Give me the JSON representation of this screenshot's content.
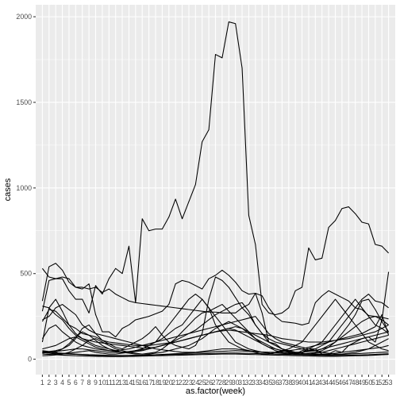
{
  "chart_data": {
    "type": "line",
    "title": "",
    "xlabel": "as.factor(week)",
    "ylabel": "cases",
    "categories": [
      "1",
      "2",
      "3",
      "4",
      "5",
      "6",
      "7",
      "8",
      "9",
      "10",
      "11",
      "12",
      "13",
      "14",
      "15",
      "16",
      "17",
      "18",
      "19",
      "20",
      "21",
      "22",
      "23",
      "24",
      "25",
      "26",
      "27",
      "28",
      "29",
      "30",
      "31",
      "32",
      "33",
      "34",
      "35",
      "36",
      "37",
      "38",
      "39",
      "40",
      "41",
      "42",
      "43",
      "44",
      "45",
      "46",
      "47",
      "48",
      "49",
      "50",
      "51",
      "52",
      "53"
    ],
    "ylim": [
      -90,
      2070
    ],
    "yticks": [
      0,
      500,
      1000,
      1500,
      2000
    ],
    "grid": true,
    "legend": "none",
    "series": [
      {
        "values": [
          340,
          540,
          560,
          520,
          450,
          420,
          420,
          410,
          420,
          390,
          410,
          380,
          360,
          340,
          330,
          325,
          320,
          315,
          310,
          305,
          300,
          295,
          290,
          285,
          280,
          275,
          275,
          270,
          270,
          270,
          300,
          320,
          385,
          370,
          300,
          250,
          220,
          215,
          210,
          200,
          210,
          330,
          370,
          400,
          380,
          360,
          340,
          300,
          290,
          255,
          250,
          245,
          235
        ]
      },
      {
        "values": [
          280,
          460,
          470,
          480,
          470,
          420,
          410,
          440,
          260,
          160,
          160,
          130,
          180,
          200,
          230,
          240,
          250,
          265,
          280,
          320,
          440,
          460,
          450,
          430,
          410,
          470,
          490,
          520,
          490,
          450,
          400,
          380,
          385,
          270,
          100,
          90,
          60,
          40,
          30,
          50,
          60,
          60,
          30,
          30,
          50,
          40,
          80,
          100,
          120,
          130,
          100,
          230,
          510
        ]
      },
      {
        "values": [
          530,
          480,
          470,
          470,
          400,
          350,
          350,
          270,
          430,
          380,
          470,
          530,
          500,
          660,
          330,
          820,
          750,
          760,
          760,
          830,
          935,
          820,
          920,
          1020,
          1270,
          1340,
          1780,
          1760,
          1970,
          1960,
          1700,
          840,
          670,
          320,
          270,
          260,
          270,
          300,
          400,
          420,
          650,
          580,
          590,
          770,
          810,
          880,
          890,
          850,
          800,
          790,
          670,
          660,
          620
        ]
      },
      {
        "values": [
          220,
          290,
          280,
          240,
          200,
          180,
          150,
          140,
          130,
          110,
          100,
          95,
          90,
          85,
          80,
          80,
          80,
          85,
          90,
          95,
          100,
          110,
          120,
          130,
          140,
          150,
          160,
          165,
          170,
          165,
          160,
          155,
          150,
          145,
          140,
          130,
          120,
          115,
          110,
          105,
          100,
          100,
          100,
          105,
          110,
          115,
          120,
          130,
          140,
          150,
          160,
          180,
          200
        ]
      },
      {
        "values": [
          50,
          45,
          40,
          60,
          80,
          120,
          180,
          200,
          150,
          110,
          90,
          70,
          60,
          80,
          100,
          120,
          150,
          190,
          140,
          100,
          80,
          70,
          60,
          80,
          150,
          350,
          480,
          460,
          420,
          360,
          300,
          260,
          200,
          150,
          100,
          80,
          60,
          50,
          40,
          40,
          60,
          80,
          100,
          150,
          200,
          250,
          300,
          350,
          300,
          250,
          200,
          180,
          150
        ]
      },
      {
        "values": [
          100,
          300,
          350,
          280,
          200,
          150,
          120,
          100,
          80,
          70,
          60,
          50,
          40,
          40,
          50,
          60,
          80,
          100,
          150,
          200,
          250,
          300,
          350,
          380,
          350,
          300,
          200,
          150,
          100,
          80,
          60,
          50,
          40,
          30,
          30,
          40,
          50,
          60,
          80,
          100,
          150,
          200,
          250,
          300,
          350,
          300,
          250,
          200,
          150,
          100,
          80,
          60,
          50
        ]
      },
      {
        "values": [
          40,
          35,
          30,
          30,
          35,
          40,
          45,
          50,
          40,
          35,
          30,
          30,
          35,
          40,
          50,
          60,
          80,
          100,
          120,
          150,
          180,
          200,
          250,
          300,
          350,
          300,
          250,
          200,
          150,
          100,
          80,
          60,
          50,
          40,
          35,
          30,
          30,
          30,
          35,
          40,
          50,
          60,
          80,
          100,
          150,
          200,
          250,
          300,
          350,
          380,
          340,
          330,
          300
        ]
      },
      {
        "values": [
          230,
          250,
          300,
          320,
          290,
          260,
          200,
          170,
          150,
          140,
          130,
          120,
          110,
          100,
          90,
          80,
          70,
          60,
          55,
          50,
          45,
          40,
          40,
          40,
          45,
          50,
          55,
          60,
          60,
          60,
          55,
          50,
          45,
          40,
          40,
          40,
          45,
          50,
          55,
          60,
          70,
          80,
          90,
          100,
          110,
          120,
          130,
          140,
          150,
          170,
          190,
          260,
          140
        ]
      },
      {
        "values": [
          40,
          45,
          50,
          60,
          90,
          130,
          160,
          140,
          110,
          80,
          60,
          50,
          40,
          35,
          30,
          30,
          35,
          40,
          60,
          90,
          120,
          160,
          200,
          240,
          270,
          280,
          300,
          320,
          280,
          240,
          200,
          160,
          120,
          90,
          70,
          50,
          40,
          35,
          30,
          30,
          35,
          40,
          50,
          70,
          100,
          150,
          200,
          260,
          340,
          350,
          290,
          220,
          160
        ]
      },
      {
        "values": [
          310,
          300,
          260,
          230,
          180,
          140,
          120,
          110,
          100,
          95,
          90,
          85,
          80,
          75,
          70,
          65,
          65,
          70,
          80,
          90,
          110,
          130,
          150,
          170,
          200,
          230,
          260,
          280,
          300,
          320,
          330,
          280,
          200,
          150,
          120,
          100,
          90,
          80,
          70,
          60,
          50,
          50,
          60,
          80,
          100,
          130,
          160,
          190,
          220,
          240,
          250,
          230,
          200
        ]
      },
      {
        "values": [
          120,
          180,
          200,
          160,
          130,
          100,
          80,
          70,
          60,
          55,
          50,
          50,
          55,
          60,
          70,
          80,
          90,
          100,
          110,
          120,
          130,
          140,
          150,
          160,
          170,
          180,
          190,
          200,
          210,
          220,
          230,
          240,
          250,
          200,
          150,
          120,
          100,
          90,
          80,
          70,
          60,
          50,
          40,
          35,
          30,
          30,
          35,
          40,
          50,
          60,
          80,
          100,
          120
        ]
      },
      {
        "values": [
          60,
          70,
          80,
          100,
          120,
          130,
          110,
          90,
          70,
          60,
          50,
          45,
          40,
          40,
          45,
          50,
          60,
          70,
          80,
          90,
          100,
          110,
          120,
          130,
          140,
          150,
          160,
          170,
          180,
          170,
          150,
          130,
          110,
          90,
          70,
          60,
          50,
          45,
          40,
          40,
          45,
          50,
          60,
          70,
          80,
          90,
          100,
          110,
          120,
          130,
          140,
          150,
          160
        ]
      },
      {
        "values": [
          35,
          40,
          45,
          50,
          55,
          60,
          60,
          55,
          50,
          45,
          40,
          40,
          40,
          45,
          50,
          55,
          60,
          70,
          80,
          90,
          100,
          110,
          120,
          130,
          140,
          150,
          160,
          170,
          180,
          190,
          180,
          160,
          140,
          120,
          100,
          80,
          60,
          50,
          40,
          35,
          30,
          30,
          30,
          30,
          35,
          40,
          45,
          50,
          55,
          60,
          65,
          70,
          80
        ]
      },
      {
        "values": [
          45,
          42,
          38,
          35,
          32,
          30,
          28,
          26,
          25,
          24,
          23,
          22,
          22,
          22,
          23,
          24,
          25,
          26,
          28,
          30,
          32,
          34,
          36,
          38,
          40,
          42,
          44,
          46,
          48,
          50,
          48,
          46,
          44,
          42,
          40,
          38,
          36,
          34,
          32,
          30,
          28,
          27,
          26,
          26,
          27,
          28,
          30,
          32,
          34,
          36,
          38,
          40,
          42
        ]
      },
      {
        "values": [
          38,
          36,
          34,
          32,
          30,
          28,
          26,
          24,
          22,
          21,
          20,
          20,
          20,
          21,
          22,
          23,
          24,
          25,
          26,
          27,
          28,
          29,
          30,
          31,
          32,
          33,
          34,
          35,
          36,
          36,
          35,
          34,
          33,
          32,
          31,
          30,
          29,
          28,
          27,
          26,
          25,
          24,
          23,
          22,
          22,
          22,
          23,
          24,
          25,
          26,
          28,
          30,
          32
        ]
      },
      {
        "values": [
          30,
          28,
          26,
          24,
          22,
          20,
          19,
          18,
          17,
          16,
          15,
          15,
          15,
          16,
          17,
          18,
          19,
          20,
          21,
          22,
          23,
          24,
          25,
          26,
          27,
          28,
          29,
          30,
          30,
          30,
          29,
          28,
          27,
          26,
          25,
          24,
          23,
          22,
          21,
          20,
          19,
          18,
          17,
          17,
          17,
          18,
          19,
          20,
          21,
          22,
          24,
          26,
          28
        ]
      },
      {
        "values": [
          20,
          22,
          25,
          30,
          40,
          60,
          80,
          110,
          120,
          100,
          80,
          60,
          50,
          40,
          35,
          30,
          30,
          35,
          40,
          50,
          60,
          70,
          80,
          100,
          120,
          150,
          180,
          200,
          220,
          200,
          180,
          150,
          120,
          100,
          80,
          60,
          50,
          40,
          35,
          30,
          30,
          35,
          40,
          50,
          60,
          70,
          80,
          90,
          100,
          110,
          120,
          130,
          140
        ]
      }
    ]
  }
}
